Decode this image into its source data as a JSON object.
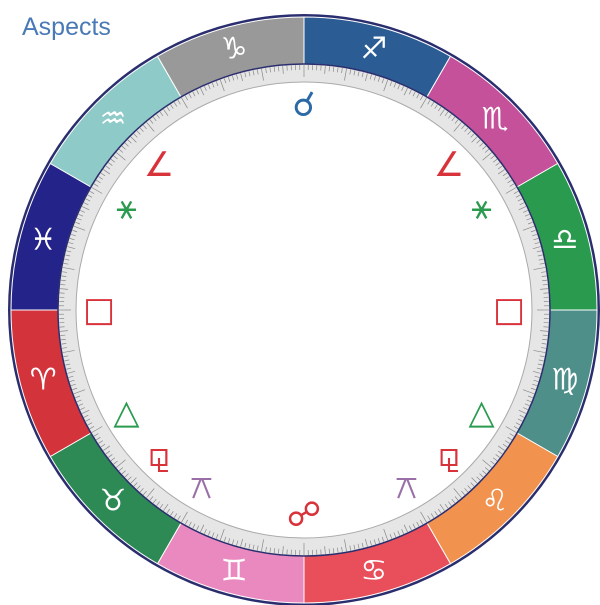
{
  "title": "Aspects",
  "signs": [
    {
      "glyph": "♐︎",
      "color": "#2b5d94"
    },
    {
      "glyph": "♏︎",
      "color": "#c4519a"
    },
    {
      "glyph": "♎︎",
      "color": "#2a9b4e"
    },
    {
      "glyph": "♍︎",
      "color": "#4e8f8a"
    },
    {
      "glyph": "♌︎",
      "color": "#f2924f"
    },
    {
      "glyph": "♋︎",
      "color": "#e84f5a"
    },
    {
      "glyph": "♊︎",
      "color": "#e989bf"
    },
    {
      "glyph": "♉︎",
      "color": "#2d8a55"
    },
    {
      "glyph": "♈︎",
      "color": "#d3333b"
    },
    {
      "glyph": "♓︎",
      "color": "#24238a"
    },
    {
      "glyph": "♒︎",
      "color": "#8ecbc8"
    },
    {
      "glyph": "♑︎",
      "color": "#999999"
    }
  ],
  "aspects": [
    {
      "glyph": "☌",
      "color": "#2b6aa6",
      "angle": 0
    },
    {
      "glyph": "∠",
      "color": "#d8323b",
      "angle": 45
    },
    {
      "glyph": "⚹",
      "color": "#2a9b4e",
      "angle": 60
    },
    {
      "glyph": "□",
      "color": "#d8323b",
      "angle": 90
    },
    {
      "glyph": "△",
      "color": "#2a9b4e",
      "angle": 120
    },
    {
      "glyph": "⚼",
      "color": "#d8323b",
      "angle": 135
    },
    {
      "glyph": "⚻",
      "color": "#9a6fa8",
      "angle": 150
    },
    {
      "glyph": "☍",
      "color": "#d8323b",
      "angle": 180
    }
  ]
}
